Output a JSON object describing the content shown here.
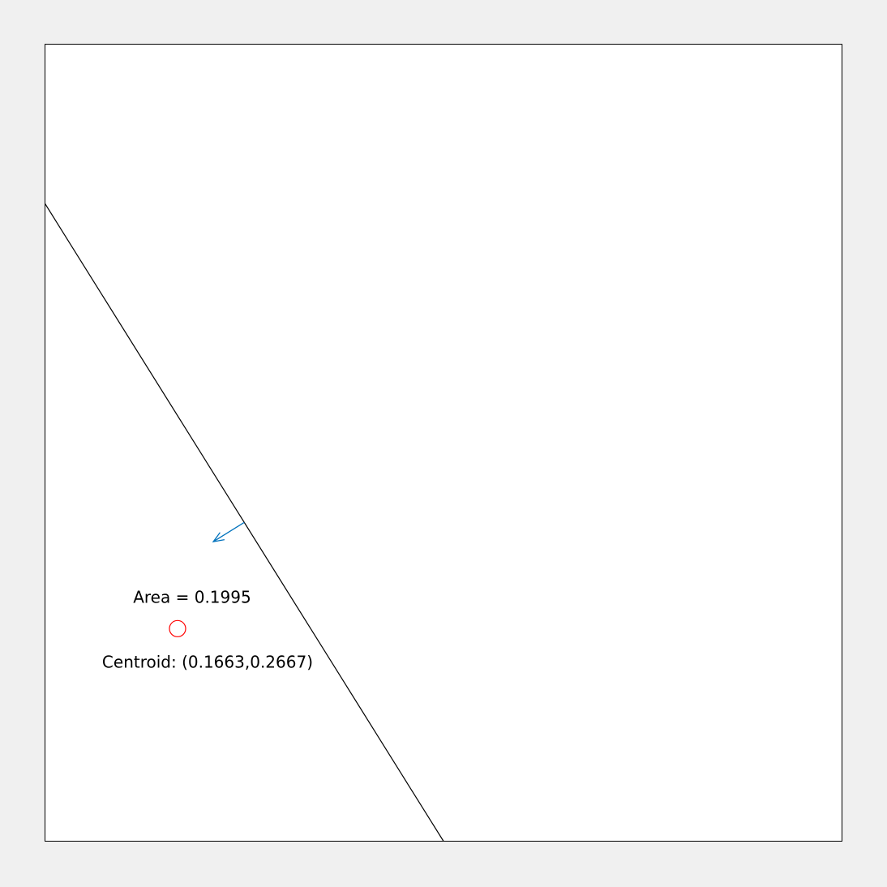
{
  "axes": {
    "xlim": [
      0,
      1
    ],
    "ylim": [
      0,
      1
    ],
    "background": "#ffffff",
    "figure_background": "#f0f0f0",
    "frame_color": "#000000"
  },
  "chart_data": {
    "type": "diagram",
    "boundary_line": {
      "points": [
        [
          0,
          0.8
        ],
        [
          0.5,
          0
        ]
      ],
      "color": "#000000"
    },
    "normal_arrow": {
      "start": [
        0.25,
        0.4
      ],
      "end": [
        0.2112,
        0.3758
      ],
      "color": "#0072bd"
    },
    "centroid": {
      "x": 0.1663,
      "y": 0.2667,
      "marker": "circle",
      "color": "#ff0000"
    },
    "annotations": {
      "area": "Area = 0.1995",
      "centroid": "Centroid: (0.1663,0.2667)"
    }
  }
}
